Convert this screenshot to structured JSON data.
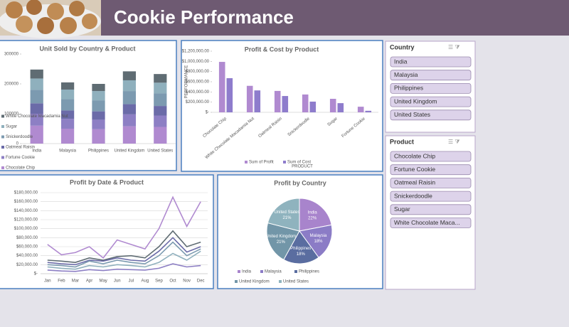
{
  "title": "Cookie Performance",
  "chart_data": [
    {
      "type": "stacked_bar",
      "title": "Unit Sold by Country & Product",
      "categories": [
        "India",
        "Malaysia",
        "Philippines",
        "United Kingdom",
        "United States"
      ],
      "series": [
        {
          "name": "Chocolate Chip",
          "color": "#b08ad0",
          "values": [
            60000,
            50000,
            48000,
            58000,
            56000
          ]
        },
        {
          "name": "Fortune Cookie",
          "color": "#8d7fc4",
          "values": [
            40000,
            33000,
            32000,
            40000,
            38000
          ]
        },
        {
          "name": "Oatmeal Raisin",
          "color": "#6b6ba8",
          "values": [
            35000,
            28000,
            28000,
            34000,
            32000
          ]
        },
        {
          "name": "Snickerdoodle",
          "color": "#7c9ab0",
          "values": [
            45000,
            38000,
            36000,
            44000,
            42000
          ]
        },
        {
          "name": "Sugar",
          "color": "#8fb0bd",
          "values": [
            38000,
            32000,
            32000,
            36000,
            36000
          ]
        },
        {
          "name": "White Chocolate Macadamia Nut",
          "color": "#5f6c73",
          "values": [
            30000,
            24000,
            24000,
            30000,
            29000
          ]
        }
      ],
      "ylim": [
        0,
        300000
      ],
      "yticks": [
        0,
        100000,
        200000,
        300000
      ],
      "grid": false
    },
    {
      "type": "bar",
      "title": "Profit & Cost by Product",
      "y_label": "PERFORMANCE",
      "x_label": "PRODUCT",
      "categories": [
        "Chocolate Chip",
        "White Chocolate Macadamia Nut",
        "Oatmeal Raisin",
        "Snickerdoodle",
        "Sugar",
        "Fortune Cookie"
      ],
      "series": [
        {
          "name": "Sum of Profit",
          "color": "#b08ad0",
          "values": [
            990000,
            520000,
            420000,
            350000,
            265000,
            110000
          ]
        },
        {
          "name": "Sum of Cost",
          "color": "#8e7ccc",
          "values": [
            670000,
            430000,
            320000,
            210000,
            180000,
            30000
          ]
        }
      ],
      "ylim": [
        0,
        1200000
      ],
      "yticks": [
        {
          "value": 0,
          "label": "$-"
        },
        {
          "value": 200000,
          "label": "$200,000.00"
        },
        {
          "value": 400000,
          "label": "$400,000.00"
        },
        {
          "value": 600000,
          "label": "$600,000.00"
        },
        {
          "value": 800000,
          "label": "$800,000.00"
        },
        {
          "value": 1000000,
          "label": "$1,000,000.00"
        },
        {
          "value": 1200000,
          "label": "$1,200,000.00"
        }
      ],
      "grid": false
    },
    {
      "type": "line",
      "title": "Profit by Date & Product",
      "categories": [
        "Jan",
        "Feb",
        "Mar",
        "Apr",
        "May",
        "Jun",
        "Jul",
        "Aug",
        "Sep",
        "Oct",
        "Nov",
        "Dec"
      ],
      "series": [
        {
          "color": "#b08ad0",
          "values": [
            65000,
            42000,
            47000,
            60000,
            35000,
            75000,
            65000,
            55000,
            100000,
            170000,
            105000,
            160000
          ]
        },
        {
          "color": "#5f6c73",
          "values": [
            30000,
            28000,
            25000,
            35000,
            30000,
            38000,
            40000,
            35000,
            60000,
            95000,
            60000,
            70000
          ]
        },
        {
          "color": "#6b6ba8",
          "values": [
            25000,
            22000,
            20000,
            30000,
            28000,
            35000,
            30000,
            28000,
            50000,
            80000,
            48000,
            60000
          ]
        },
        {
          "color": "#7c9ab0",
          "values": [
            20000,
            18000,
            15000,
            28000,
            22000,
            30000,
            25000,
            22000,
            40000,
            70000,
            40000,
            55000
          ]
        },
        {
          "color": "#8fb0bd",
          "values": [
            15000,
            12000,
            10000,
            18000,
            15000,
            20000,
            18000,
            15000,
            25000,
            45000,
            30000,
            50000
          ]
        },
        {
          "color": "#8d7fc4",
          "values": [
            8000,
            6000,
            5000,
            9000,
            7000,
            10000,
            9000,
            8000,
            12000,
            22000,
            15000,
            18000
          ]
        }
      ],
      "ylim": [
        0,
        180000
      ],
      "yticks": [
        {
          "value": 0,
          "label": "$-"
        },
        {
          "value": 20000,
          "label": "$20,000.00"
        },
        {
          "value": 40000,
          "label": "$40,000.00"
        },
        {
          "value": 60000,
          "label": "$60,000.00"
        },
        {
          "value": 80000,
          "label": "$80,000.00"
        },
        {
          "value": 100000,
          "label": "$100,000.00"
        },
        {
          "value": 120000,
          "label": "$120,000.00"
        },
        {
          "value": 140000,
          "label": "$140,000.00"
        },
        {
          "value": 160000,
          "label": "$160,000.00"
        },
        {
          "value": 180000,
          "label": "$180,000.00"
        }
      ],
      "grid": true
    },
    {
      "type": "pie",
      "title": "Profit by Country",
      "categories": [
        "India",
        "Malaysia",
        "Philippines",
        "United Kingdom",
        "United States"
      ],
      "values": [
        22,
        18,
        18,
        21,
        21
      ],
      "value_labels": [
        "22%",
        "18%",
        "18%",
        "21%",
        "21%"
      ],
      "colors": [
        "#a884cc",
        "#8b7cc6",
        "#5a6da0",
        "#7296a8",
        "#8fb3be"
      ]
    }
  ],
  "slicers": [
    {
      "title": "Country",
      "items": [
        "India",
        "Malaysia",
        "Philippines",
        "United Kingdom",
        "United States"
      ]
    },
    {
      "title": "Product",
      "items": [
        "Chocolate Chip",
        "Fortune Cookie",
        "Oatmeal Raisin",
        "Snickerdoodle",
        "Sugar",
        "White Chocolate Maca..."
      ]
    }
  ]
}
